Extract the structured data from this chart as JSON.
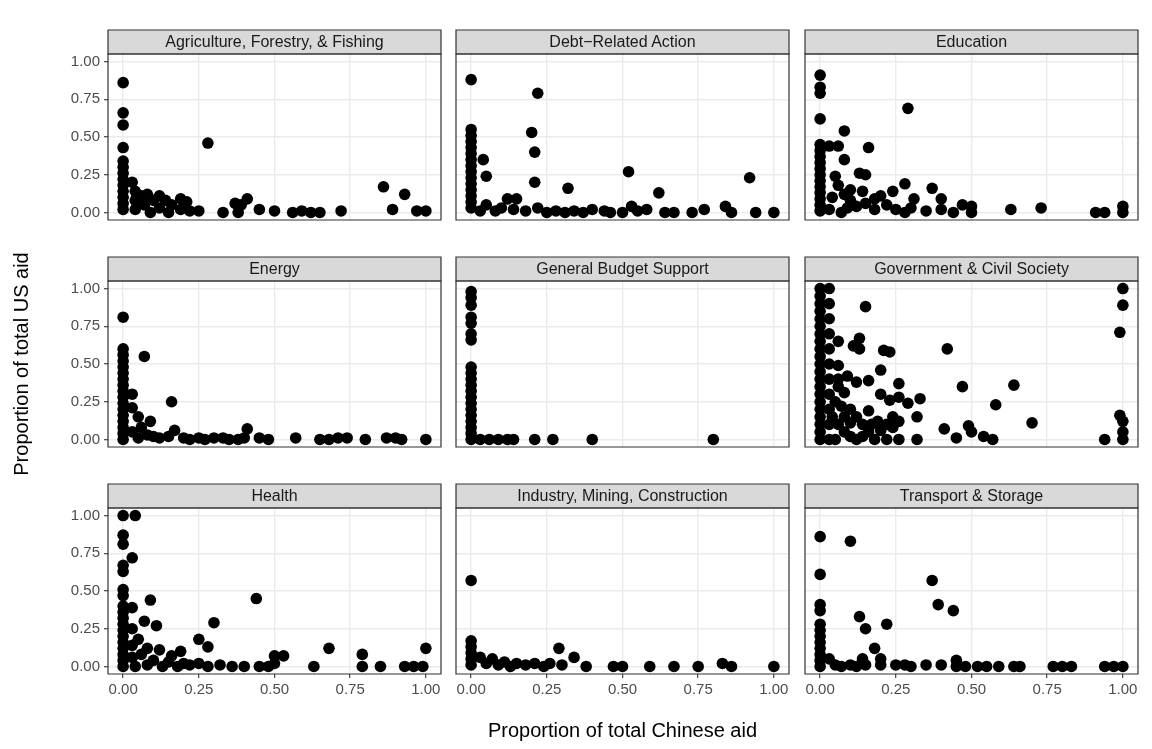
{
  "chart_data": [
    {
      "type": "scatter",
      "title": "Agriculture, Forestry, & Fishing",
      "color": "#000000",
      "marker": "circle",
      "grid": true,
      "tick_labels": "y",
      "xlim": [
        -0.05,
        1.05
      ],
      "ylim": [
        -0.05,
        1.05
      ],
      "xticks": [
        0,
        0.25,
        0.5,
        0.75,
        1
      ],
      "yticks": [
        {
          "value": 0,
          "label": "0.00"
        },
        {
          "value": 0.25,
          "label": "0.25"
        },
        {
          "value": 0.5,
          "label": "0.50"
        },
        {
          "value": 0.75,
          "label": "0.75"
        },
        {
          "value": 1,
          "label": "1.00"
        }
      ],
      "x": [
        0,
        0,
        0,
        0,
        0,
        0,
        0,
        0,
        0,
        0,
        0,
        0,
        0,
        0.03,
        0.04,
        0.04,
        0.04,
        0.06,
        0.07,
        0.08,
        0.09,
        0.1,
        0.12,
        0.12,
        0.14,
        0.15,
        0.16,
        0.19,
        0.21,
        0.19,
        0.22,
        0.25,
        0.28,
        0.33,
        0.37,
        0.38,
        0.39,
        0.41,
        0.45,
        0.5,
        0.56,
        0.59,
        0.62,
        0.65,
        0.72,
        0.86,
        0.93,
        0.89,
        0.97,
        1
      ],
      "values": [
        0.86,
        0.66,
        0.58,
        0.43,
        0.34,
        0.3,
        0.26,
        0.22,
        0.18,
        0.14,
        0.1,
        0.06,
        0.02,
        0.2,
        0.14,
        0.08,
        0.02,
        0.11,
        0.05,
        0.12,
        0,
        0.08,
        0.11,
        0.03,
        0.08,
        0,
        0.05,
        0.09,
        0.07,
        0.02,
        0.01,
        0.01,
        0.46,
        0,
        0.06,
        0,
        0.05,
        0.09,
        0.02,
        0.01,
        0,
        0.01,
        0,
        0,
        0.01,
        0.17,
        0.12,
        0.02,
        0.01,
        0.01
      ]
    },
    {
      "type": "scatter",
      "title": "Debt−Related Action",
      "color": "#000000",
      "marker": "circle",
      "grid": true,
      "tick_labels": false,
      "xlim": [
        -0.05,
        1.05
      ],
      "ylim": [
        -0.05,
        1.05
      ],
      "xticks": [
        0,
        0.25,
        0.5,
        0.75,
        1
      ],
      "yticks": [
        0,
        0.25,
        0.5,
        0.75,
        1
      ],
      "x": [
        0,
        0,
        0,
        0,
        0,
        0,
        0,
        0,
        0,
        0,
        0,
        0,
        0,
        0,
        0,
        0.22,
        0.2,
        0.21,
        0.21,
        0.04,
        0.05,
        0.32,
        0.12,
        0.15,
        0.05,
        0.03,
        0.08,
        0.1,
        0.14,
        0.18,
        0.22,
        0.25,
        0.28,
        0.31,
        0.34,
        0.37,
        0.4,
        0.44,
        0.46,
        0.5,
        0.53,
        0.55,
        0.58,
        0.52,
        0.62,
        0.64,
        0.67,
        0.73,
        0.77,
        0.84,
        0.86,
        0.92,
        0.94,
        1
      ],
      "values": [
        0.88,
        0.55,
        0.51,
        0.47,
        0.43,
        0.39,
        0.35,
        0.31,
        0.27,
        0.23,
        0.19,
        0.15,
        0.11,
        0.07,
        0.03,
        0.79,
        0.53,
        0.4,
        0.2,
        0.35,
        0.24,
        0.16,
        0.09,
        0.09,
        0.05,
        0.01,
        0.01,
        0.03,
        0.02,
        0.01,
        0.03,
        0,
        0.01,
        0,
        0.01,
        0,
        0.02,
        0.01,
        0,
        0,
        0.04,
        0.01,
        0.02,
        0.27,
        0.13,
        0,
        0,
        0,
        0.02,
        0.04,
        0,
        0.23,
        0,
        0
      ]
    },
    {
      "type": "scatter",
      "title": "Education",
      "color": "#000000",
      "marker": "circle",
      "grid": true,
      "tick_labels": false,
      "xlim": [
        -0.05,
        1.05
      ],
      "ylim": [
        -0.05,
        1.05
      ],
      "xticks": [
        0,
        0.25,
        0.5,
        0.75,
        1
      ],
      "yticks": [
        0,
        0.25,
        0.5,
        0.75,
        1
      ],
      "x": [
        0,
        0,
        0,
        0,
        0,
        0,
        0,
        0,
        0,
        0,
        0,
        0,
        0,
        0,
        0,
        0,
        0.03,
        0.29,
        0.08,
        0.06,
        0.16,
        0.08,
        0.13,
        0.15,
        0.05,
        0.14,
        0.24,
        0.28,
        0.37,
        0.4,
        0.31,
        0.47,
        0.5,
        0.5,
        0.44,
        0.63,
        0.73,
        0.91,
        0.94,
        1,
        1,
        0.04,
        0.06,
        0.08,
        0.1,
        0.12,
        0.15,
        0.18,
        0.2,
        0.22,
        0.25,
        0.03,
        0.07,
        0.09,
        0.18,
        0.28,
        0.3,
        0.35,
        0.4,
        0.1
      ],
      "values": [
        0.91,
        0.83,
        0.79,
        0.62,
        0.45,
        0.41,
        0.37,
        0.33,
        0.29,
        0.25,
        0.21,
        0.17,
        0.13,
        0.09,
        0.05,
        0.01,
        0.44,
        0.69,
        0.54,
        0.44,
        0.43,
        0.35,
        0.26,
        0.25,
        0.24,
        0.14,
        0.14,
        0.19,
        0.16,
        0.09,
        0.09,
        0.05,
        0.04,
        0,
        0,
        0.02,
        0.03,
        0,
        0,
        0.04,
        0,
        0.1,
        0.18,
        0.12,
        0.08,
        0.04,
        0.06,
        0.09,
        0.11,
        0.05,
        0.02,
        0.02,
        0,
        0.03,
        0.02,
        0,
        0.03,
        0.01,
        0.02,
        0.15
      ]
    },
    {
      "type": "scatter",
      "title": "Energy",
      "ylabel": "Proportion of total US aid",
      "color": "#000000",
      "marker": "circle",
      "grid": true,
      "tick_labels": "y",
      "xlim": [
        -0.05,
        1.05
      ],
      "ylim": [
        -0.05,
        1.05
      ],
      "xticks": [
        0,
        0.25,
        0.5,
        0.75,
        1
      ],
      "yticks": [
        {
          "value": 0,
          "label": "0.00"
        },
        {
          "value": 0.25,
          "label": "0.25"
        },
        {
          "value": 0.5,
          "label": "0.50"
        },
        {
          "value": 0.75,
          "label": "0.75"
        },
        {
          "value": 1,
          "label": "1.00"
        }
      ],
      "x": [
        0,
        0,
        0,
        0,
        0,
        0,
        0,
        0,
        0,
        0,
        0,
        0,
        0,
        0,
        0,
        0,
        0,
        0.07,
        0.16,
        0.03,
        0.05,
        0.09,
        0.06,
        0.17,
        0.41,
        0.03,
        0.05,
        0.08,
        0.1,
        0.12,
        0.15,
        0.2,
        0.22,
        0.25,
        0.27,
        0.3,
        0.33,
        0.35,
        0.38,
        0.4,
        0.45,
        0.48,
        0.57,
        0.65,
        0.68,
        0.71,
        0.74,
        0.8,
        0.87,
        0.9,
        0.92,
        1,
        0.03
      ],
      "values": [
        0.81,
        0.6,
        0.56,
        0.52,
        0.48,
        0.44,
        0.4,
        0.36,
        0.32,
        0.28,
        0.24,
        0.2,
        0.16,
        0.12,
        0.08,
        0.04,
        0,
        0.55,
        0.25,
        0.21,
        0.15,
        0.12,
        0.08,
        0.06,
        0.07,
        0.05,
        0.01,
        0.03,
        0.02,
        0.01,
        0.02,
        0.01,
        0,
        0.01,
        0,
        0.01,
        0.01,
        0,
        0,
        0.01,
        0.01,
        0,
        0.01,
        0,
        0,
        0.01,
        0.01,
        0,
        0.01,
        0.01,
        0,
        0,
        0.3
      ]
    },
    {
      "type": "scatter",
      "title": "General Budget Support",
      "color": "#000000",
      "marker": "circle",
      "grid": true,
      "tick_labels": false,
      "xlim": [
        -0.05,
        1.05
      ],
      "ylim": [
        -0.05,
        1.05
      ],
      "xticks": [
        0,
        0.25,
        0.5,
        0.75,
        1
      ],
      "yticks": [
        0,
        0.25,
        0.5,
        0.75,
        1
      ],
      "x": [
        0,
        0,
        0,
        0,
        0,
        0,
        0,
        0,
        0,
        0,
        0,
        0,
        0,
        0,
        0,
        0,
        0,
        0,
        0,
        0,
        0.03,
        0.06,
        0.09,
        0.12,
        0.14,
        0.21,
        0.27,
        0.4,
        0.8
      ],
      "values": [
        0.98,
        0.94,
        0.89,
        0.81,
        0.77,
        0.7,
        0.66,
        0.48,
        0.44,
        0.4,
        0.36,
        0.32,
        0.28,
        0.24,
        0.2,
        0.16,
        0.12,
        0.08,
        0.04,
        0,
        0,
        0,
        0,
        0,
        0,
        0,
        0,
        0,
        0
      ]
    },
    {
      "type": "scatter",
      "title": "Government & Civil Society",
      "color": "#000000",
      "marker": "circle",
      "grid": true,
      "tick_labels": false,
      "xlim": [
        -0.05,
        1.05
      ],
      "ylim": [
        -0.05,
        1.05
      ],
      "xticks": [
        0,
        0.25,
        0.5,
        0.75,
        1
      ],
      "yticks": [
        0,
        0.25,
        0.5,
        0.75,
        1
      ],
      "x": [
        0,
        0,
        0,
        0,
        0,
        0,
        0,
        0,
        0,
        0,
        0,
        0,
        0,
        0,
        0,
        0,
        0,
        0,
        0,
        0,
        0,
        0.03,
        0.03,
        0.03,
        0.03,
        0.03,
        0.03,
        0.03,
        0.03,
        0.03,
        0.03,
        0.03,
        0.15,
        0.06,
        0.13,
        0.11,
        0.13,
        0.21,
        0.23,
        0.42,
        0.06,
        0.2,
        0.09,
        0.12,
        0.16,
        0.26,
        0.47,
        0.64,
        0.08,
        0.2,
        0.23,
        0.26,
        0.29,
        0.33,
        0.58,
        0.16,
        0.32,
        0.24,
        0.26,
        0.7,
        0.41,
        0.49,
        0.5,
        0.45,
        0.54,
        0.57,
        0.32,
        0.26,
        0.22,
        0.18,
        0.94,
        1,
        1,
        0.99,
        0.99,
        1,
        1,
        1,
        0.05,
        0.07,
        0.1,
        0.12,
        0.14,
        0.16,
        0.04,
        0.06,
        0.08,
        0.1,
        0.12,
        0.19,
        0.22,
        0.2,
        0.24,
        0.14,
        0.05,
        0.08,
        0.06,
        0.06,
        0.1,
        0.17
      ],
      "values": [
        1,
        0.95,
        0.9,
        0.85,
        0.8,
        0.75,
        0.7,
        0.65,
        0.6,
        0.55,
        0.5,
        0.45,
        0.4,
        0.35,
        0.3,
        0.25,
        0.2,
        0.15,
        0.1,
        0.05,
        0,
        1,
        0.9,
        0.8,
        0.7,
        0.6,
        0.5,
        0.4,
        0.3,
        0.2,
        0.1,
        0,
        0.88,
        0.65,
        0.67,
        0.62,
        0.6,
        0.59,
        0.58,
        0.6,
        0.49,
        0.46,
        0.42,
        0.38,
        0.39,
        0.37,
        0.35,
        0.36,
        0.31,
        0.3,
        0.26,
        0.28,
        0.24,
        0.27,
        0.23,
        0.19,
        0.15,
        0.15,
        0.12,
        0.11,
        0.07,
        0.09,
        0.05,
        0.01,
        0.02,
        0,
        0,
        0,
        0,
        0,
        0,
        1,
        0.89,
        0.71,
        0.16,
        0.12,
        0.05,
        0,
        0.25,
        0.22,
        0.2,
        0.15,
        0.1,
        0.05,
        0.15,
        0.1,
        0.05,
        0.02,
        0,
        0.12,
        0.1,
        0.06,
        0.08,
        0.02,
        0,
        0.15,
        0.4,
        0.35,
        0.11,
        0.1
      ]
    },
    {
      "type": "scatter",
      "title": "Health",
      "color": "#000000",
      "marker": "circle",
      "grid": true,
      "xlim": [
        -0.05,
        1.05
      ],
      "ylim": [
        -0.05,
        1.05
      ],
      "xticks": [
        {
          "value": 0,
          "label": "0.00"
        },
        {
          "value": 0.25,
          "label": "0.25"
        },
        {
          "value": 0.5,
          "label": "0.50"
        },
        {
          "value": 0.75,
          "label": "0.75"
        },
        {
          "value": 1,
          "label": "1.00"
        }
      ],
      "yticks": [
        {
          "value": 0,
          "label": "0.00"
        },
        {
          "value": 0.25,
          "label": "0.25"
        },
        {
          "value": 0.5,
          "label": "0.50"
        },
        {
          "value": 0.75,
          "label": "0.75"
        },
        {
          "value": 1,
          "label": "1.00"
        }
      ],
      "x": [
        0,
        0,
        0,
        0,
        0,
        0,
        0,
        0,
        0,
        0,
        0,
        0,
        0,
        0,
        0,
        0,
        0,
        0,
        0.04,
        0.03,
        0.09,
        0.44,
        0.3,
        0.11,
        0.07,
        0.03,
        0.03,
        0.25,
        0.28,
        0.12,
        0.19,
        0.16,
        0.68,
        0.79,
        1,
        0.5,
        0.53,
        0.08,
        0.05,
        0.06,
        0.1,
        0.15,
        0.2,
        0.25,
        0.28,
        0.32,
        0.36,
        0.4,
        0.45,
        0.48,
        0.5,
        0.63,
        0.79,
        0.85,
        0.93,
        0.96,
        0.99,
        0.04,
        0.08,
        0.13,
        0.18,
        0.22,
        0.03,
        0.03
      ],
      "values": [
        1,
        0.87,
        0.81,
        0.67,
        0.63,
        0.51,
        0.47,
        0.4,
        0.36,
        0.32,
        0.28,
        0.24,
        0.2,
        0.16,
        0.12,
        0.08,
        0.04,
        0,
        1,
        0.72,
        0.44,
        0.45,
        0.29,
        0.27,
        0.3,
        0.39,
        0.25,
        0.18,
        0.13,
        0.11,
        0.1,
        0.07,
        0.12,
        0.08,
        0.12,
        0.07,
        0.07,
        0.12,
        0.18,
        0.08,
        0.04,
        0.03,
        0.02,
        0.02,
        0,
        0.01,
        0,
        0,
        0,
        0,
        0.02,
        0,
        0,
        0,
        0,
        0,
        0,
        0,
        0.01,
        0,
        0,
        0.01,
        0.14,
        0.06
      ]
    },
    {
      "type": "scatter",
      "title": "Industry, Mining, Construction",
      "xlabel": "Proportion of total Chinese aid",
      "color": "#000000",
      "marker": "circle",
      "grid": true,
      "tick_labels": "x",
      "xlim": [
        -0.05,
        1.05
      ],
      "ylim": [
        -0.05,
        1.05
      ],
      "xticks": [
        {
          "value": 0,
          "label": "0.00"
        },
        {
          "value": 0.25,
          "label": "0.25"
        },
        {
          "value": 0.5,
          "label": "0.50"
        },
        {
          "value": 0.75,
          "label": "0.75"
        },
        {
          "value": 1,
          "label": "1.00"
        }
      ],
      "yticks": [
        0,
        0.25,
        0.5,
        0.75,
        1
      ],
      "x": [
        0,
        0,
        0,
        0,
        0,
        0,
        0.03,
        0.05,
        0.07,
        0.09,
        0.11,
        0.13,
        0.15,
        0.18,
        0.21,
        0.24,
        0.26,
        0.29,
        0.3,
        0.34,
        0.38,
        0.47,
        0.5,
        0.59,
        0.67,
        0.75,
        0.83,
        0.86,
        1
      ],
      "values": [
        0.57,
        0.17,
        0.13,
        0.09,
        0.05,
        0.01,
        0.06,
        0.02,
        0.05,
        0.01,
        0.03,
        0,
        0.02,
        0.01,
        0.02,
        0,
        0.02,
        0.12,
        0.01,
        0.06,
        0,
        0,
        0,
        0,
        0,
        0,
        0.02,
        0,
        0
      ]
    },
    {
      "type": "scatter",
      "title": "Transport & Storage",
      "color": "#000000",
      "marker": "circle",
      "grid": true,
      "tick_labels": "x",
      "xlim": [
        -0.05,
        1.05
      ],
      "ylim": [
        -0.05,
        1.05
      ],
      "xticks": [
        {
          "value": 0,
          "label": "0.00"
        },
        {
          "value": 0.25,
          "label": "0.25"
        },
        {
          "value": 0.5,
          "label": "0.50"
        },
        {
          "value": 0.75,
          "label": "0.75"
        },
        {
          "value": 1,
          "label": "1.00"
        }
      ],
      "yticks": [
        0,
        0.25,
        0.5,
        0.75,
        1
      ],
      "x": [
        0,
        0,
        0,
        0,
        0,
        0,
        0,
        0,
        0,
        0,
        0,
        0,
        0.1,
        0.37,
        0.39,
        0.44,
        0.13,
        0.15,
        0.22,
        0.18,
        0.03,
        0.14,
        0.2,
        0.45,
        0.05,
        0.1,
        0.15,
        0.2,
        0.25,
        0.3,
        0.28,
        0.35,
        0.4,
        0.45,
        0.48,
        0.52,
        0.55,
        0.59,
        0.64,
        0.66,
        0.77,
        0.8,
        0.83,
        0.94,
        0.97,
        1,
        0.07,
        0.12
      ],
      "values": [
        0.86,
        0.61,
        0.41,
        0.37,
        0.28,
        0.24,
        0.2,
        0.16,
        0.12,
        0.08,
        0.04,
        0,
        0.83,
        0.57,
        0.41,
        0.37,
        0.33,
        0.25,
        0.28,
        0.12,
        0.05,
        0.05,
        0.05,
        0.04,
        0.01,
        0.01,
        0.01,
        0.01,
        0.01,
        0,
        0.01,
        0.01,
        0.01,
        0,
        0,
        0,
        0,
        0,
        0,
        0,
        0,
        0,
        0,
        0,
        0,
        0,
        0,
        0
      ]
    }
  ]
}
